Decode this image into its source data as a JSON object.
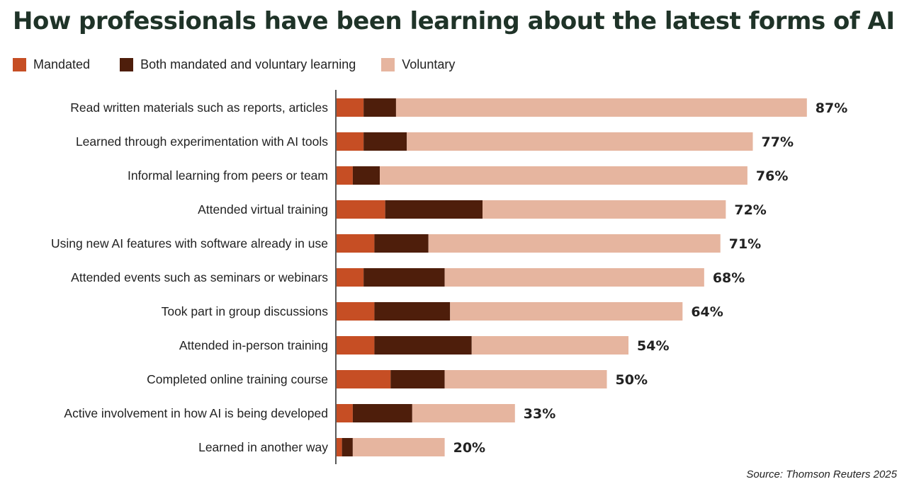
{
  "chart_data": {
    "type": "bar",
    "title": "How professionals have been learning about the latest forms of AI",
    "categories": [
      "Read written materials such as reports, articles",
      "Learned through experimentation with AI tools",
      "Informal learning from peers or team",
      "Attended virtual training",
      "Using new AI features with software already in use",
      "Attended events such as seminars or webinars",
      "Took part in group discussions",
      "Attended in-person training",
      "Completed online training course",
      "Active involvement in how AI is being developed",
      "Learned in another way"
    ],
    "series": [
      {
        "name": "Mandated",
        "color": "#c64e24",
        "values": [
          5,
          5,
          3,
          9,
          7,
          5,
          7,
          7,
          10,
          3,
          1
        ]
      },
      {
        "name": "Both mandated and voluntary learning",
        "color": "#4e1e0b",
        "values": [
          6,
          8,
          5,
          18,
          10,
          15,
          14,
          18,
          10,
          11,
          2
        ]
      },
      {
        "name": "Voluntary",
        "color": "#e6b59f",
        "values": [
          76,
          64,
          68,
          45,
          54,
          48,
          43,
          29,
          30,
          19,
          17
        ]
      }
    ],
    "totals": [
      "87%",
      "77%",
      "76%",
      "72%",
      "71%",
      "68%",
      "64%",
      "54%",
      "50%",
      "33%",
      "20%"
    ],
    "orientation": "horizontal",
    "stacked": true,
    "xlim": [
      0,
      100
    ],
    "legend_position": "top-left",
    "grid": false
  },
  "source": "Source: Thomson Reuters 2025"
}
